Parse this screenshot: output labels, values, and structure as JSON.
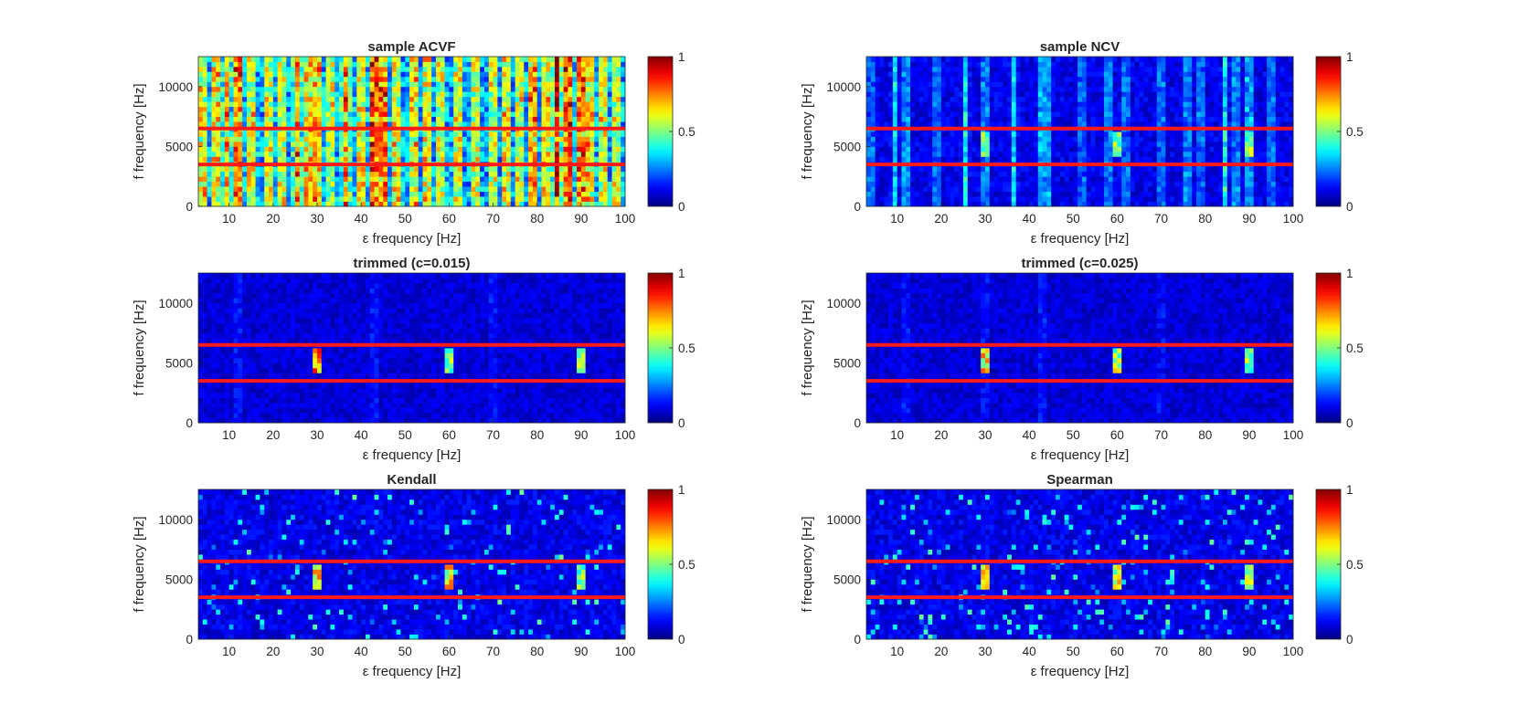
{
  "figure": {
    "colormap": "jet",
    "band_line_color": "#ff1a1a",
    "axis_color": "#262626"
  },
  "chart_data": [
    {
      "type": "heatmap",
      "title": "sample ACVF",
      "xlabel": "ε frequency [Hz]",
      "ylabel": "f frequency [Hz]",
      "xlim": [
        3,
        100
      ],
      "ylim": [
        0,
        12500
      ],
      "xticks": [
        10,
        20,
        30,
        40,
        50,
        60,
        70,
        80,
        90,
        100
      ],
      "yticks": [
        0,
        5000,
        10000
      ],
      "band_lines_y": [
        3500,
        6500
      ],
      "colorbar": {
        "range": [
          0,
          1
        ],
        "ticks": [
          0,
          0.5,
          1
        ]
      },
      "pattern": "broadband-stripes",
      "background_level": 0.3,
      "stripe_frequencies": [
        4,
        7,
        9.5,
        12,
        15,
        19,
        22,
        25.5,
        28,
        30,
        33,
        36.5,
        40,
        43,
        45,
        48,
        52,
        55,
        58,
        62,
        66,
        70,
        73,
        76,
        79,
        82,
        84.5,
        87,
        90,
        92,
        95,
        98
      ],
      "stripe_strengths": [
        0.55,
        0.6,
        0.5,
        0.75,
        0.55,
        0.55,
        0.5,
        0.55,
        0.6,
        0.65,
        0.5,
        0.6,
        0.55,
        0.85,
        0.8,
        0.55,
        0.6,
        0.55,
        0.5,
        0.55,
        0.5,
        0.5,
        0.55,
        0.5,
        0.7,
        0.6,
        0.8,
        0.85,
        0.8,
        0.6,
        0.55,
        0.5
      ],
      "peak_frequencies": [
        30,
        60,
        90
      ],
      "peak_f_range": [
        4000,
        6200
      ],
      "peak_strengths": [
        0.4,
        0.3,
        0.4
      ]
    },
    {
      "type": "heatmap",
      "title": "sample NCV",
      "xlabel": "ε frequency [Hz]",
      "ylabel": "f frequency [Hz]",
      "xlim": [
        3,
        100
      ],
      "ylim": [
        0,
        12500
      ],
      "xticks": [
        10,
        20,
        30,
        40,
        50,
        60,
        70,
        80,
        90,
        100
      ],
      "yticks": [
        0,
        5000,
        10000
      ],
      "band_lines_y": [
        3500,
        6500
      ],
      "colorbar": {
        "range": [
          0,
          1
        ],
        "ticks": [
          0,
          0.5,
          1
        ]
      },
      "pattern": "sparse-stripes",
      "background_level": 0.12,
      "stripe_frequencies": [
        4,
        9.5,
        12,
        19,
        25.5,
        30,
        36.5,
        43,
        44,
        52,
        58,
        62,
        70,
        76,
        79,
        84.5,
        87,
        90,
        95
      ],
      "stripe_strengths": [
        0.3,
        0.3,
        0.4,
        0.3,
        0.35,
        0.35,
        0.3,
        0.45,
        0.45,
        0.3,
        0.35,
        0.3,
        0.3,
        0.35,
        0.3,
        0.35,
        0.35,
        0.45,
        0.3
      ],
      "peak_frequencies": [
        30,
        60,
        90
      ],
      "peak_f_range": [
        4000,
        6200
      ],
      "peak_strengths": [
        0.55,
        0.6,
        0.6
      ]
    },
    {
      "type": "heatmap",
      "title": "trimmed (c=0.015)",
      "xlabel": "ε frequency [Hz]",
      "ylabel": "f frequency [Hz]",
      "xlim": [
        3,
        100
      ],
      "ylim": [
        0,
        12500
      ],
      "xticks": [
        10,
        20,
        30,
        40,
        50,
        60,
        70,
        80,
        90,
        100
      ],
      "yticks": [
        0,
        5000,
        10000
      ],
      "band_lines_y": [
        3500,
        6500
      ],
      "colorbar": {
        "range": [
          0,
          1
        ],
        "ticks": [
          0,
          0.5,
          1
        ]
      },
      "pattern": "peaks",
      "background_level": 0.1,
      "stripe_frequencies": [
        12,
        43,
        70
      ],
      "stripe_strengths": [
        0.12,
        0.12,
        0.12
      ],
      "peak_frequencies": [
        30,
        60,
        90
      ],
      "peak_f_range": [
        4000,
        6200
      ],
      "peak_strengths": [
        0.85,
        0.6,
        0.6
      ]
    },
    {
      "type": "heatmap",
      "title": "trimmed (c=0.025)",
      "xlabel": "ε frequency [Hz]",
      "ylabel": "f frequency [Hz]",
      "xlim": [
        3,
        100
      ],
      "ylim": [
        0,
        12500
      ],
      "xticks": [
        10,
        20,
        30,
        40,
        50,
        60,
        70,
        80,
        90,
        100
      ],
      "yticks": [
        0,
        5000,
        10000
      ],
      "band_lines_y": [
        3500,
        6500
      ],
      "colorbar": {
        "range": [
          0,
          1
        ],
        "ticks": [
          0,
          0.5,
          1
        ]
      },
      "pattern": "peaks",
      "background_level": 0.1,
      "stripe_frequencies": [
        12,
        30,
        43,
        70
      ],
      "stripe_strengths": [
        0.12,
        0.1,
        0.12,
        0.1
      ],
      "peak_frequencies": [
        30,
        60,
        90
      ],
      "peak_f_range": [
        4000,
        6200
      ],
      "peak_strengths": [
        0.75,
        0.65,
        0.6
      ]
    },
    {
      "type": "heatmap",
      "title": "Kendall",
      "xlabel": "ε frequency [Hz]",
      "ylabel": "f frequency [Hz]",
      "xlim": [
        3,
        100
      ],
      "ylim": [
        0,
        12500
      ],
      "xticks": [
        10,
        20,
        30,
        40,
        50,
        60,
        70,
        80,
        90,
        100
      ],
      "yticks": [
        0,
        5000,
        10000
      ],
      "band_lines_y": [
        3500,
        6500
      ],
      "colorbar": {
        "range": [
          0,
          1
        ],
        "ticks": [
          0,
          0.5,
          1
        ]
      },
      "pattern": "speckled-peaks",
      "background_level": 0.12,
      "stripe_frequencies": [],
      "stripe_strengths": [],
      "peak_frequencies": [
        30,
        60,
        90
      ],
      "peak_f_range": [
        4000,
        6200
      ],
      "peak_strengths": [
        0.75,
        0.75,
        0.6
      ]
    },
    {
      "type": "heatmap",
      "title": "Spearman",
      "xlabel": "ε frequency [Hz]",
      "ylabel": "f frequency [Hz]",
      "xlim": [
        3,
        100
      ],
      "ylim": [
        0,
        12500
      ],
      "xticks": [
        10,
        20,
        30,
        40,
        50,
        60,
        70,
        80,
        90,
        100
      ],
      "yticks": [
        0,
        5000,
        10000
      ],
      "band_lines_y": [
        3500,
        6500
      ],
      "colorbar": {
        "range": [
          0,
          1
        ],
        "ticks": [
          0,
          0.5,
          1
        ]
      },
      "pattern": "speckled-peaks",
      "background_level": 0.12,
      "stripe_frequencies": [],
      "stripe_strengths": [],
      "peak_frequencies": [
        30,
        60,
        90
      ],
      "peak_f_range": [
        4000,
        6200
      ],
      "peak_strengths": [
        0.8,
        0.7,
        0.65
      ]
    }
  ]
}
